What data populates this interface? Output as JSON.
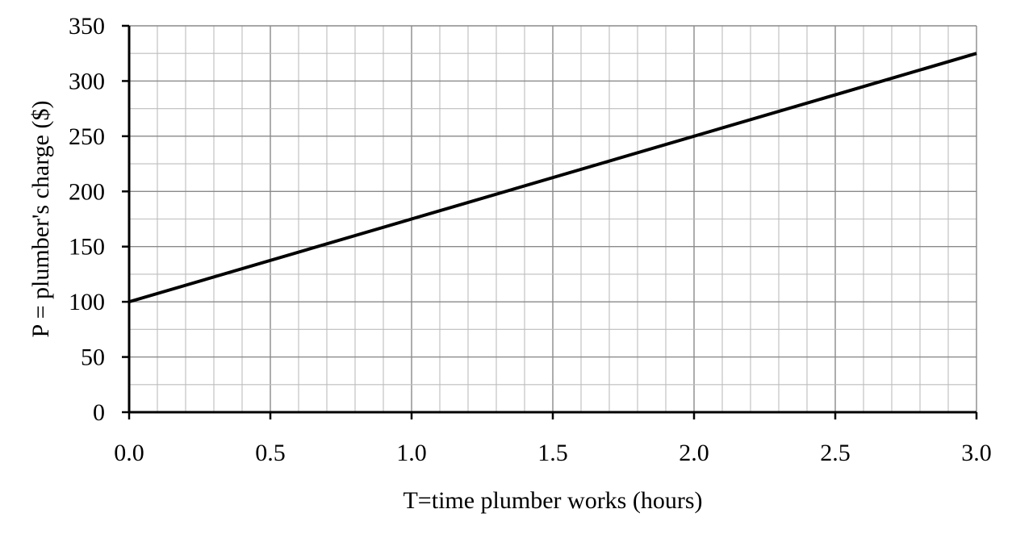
{
  "chart_data": {
    "type": "line",
    "title": "",
    "xlabel": "T=time plumber works (hours)",
    "ylabel": "P = plumber's charge ($)",
    "xlim": [
      0,
      3
    ],
    "ylim": [
      0,
      350
    ],
    "x_ticks": [
      "0.0",
      "0.5",
      "1.0",
      "1.5",
      "2.0",
      "2.5",
      "3.0"
    ],
    "y_ticks": [
      "0",
      "50",
      "100",
      "150",
      "200",
      "250",
      "300",
      "350"
    ],
    "grid": true,
    "series": [
      {
        "x": [
          0,
          3
        ],
        "y": [
          100,
          325
        ],
        "color": "#000000"
      }
    ]
  }
}
